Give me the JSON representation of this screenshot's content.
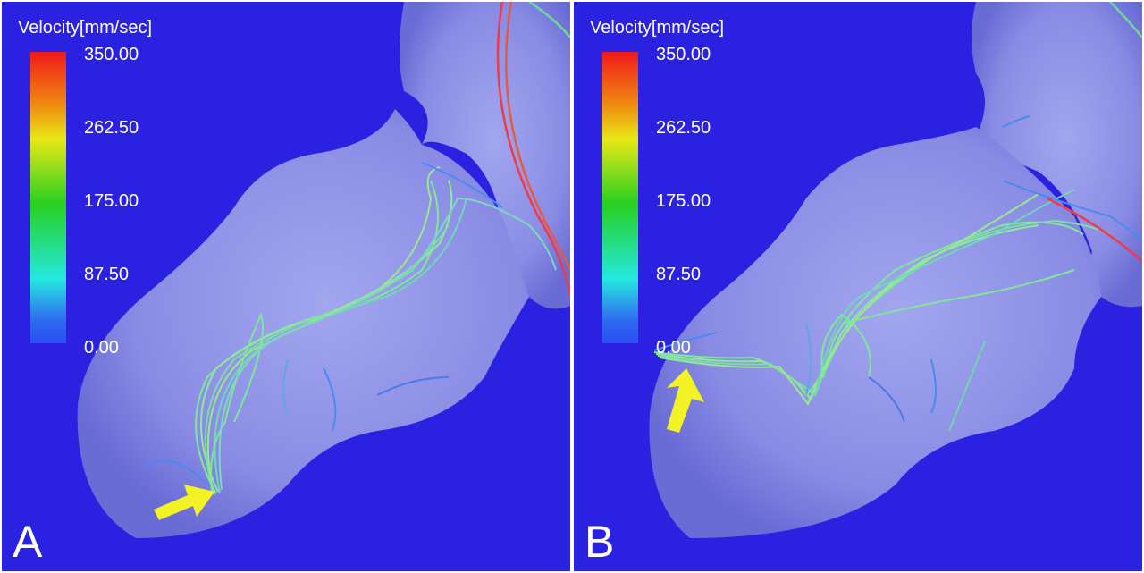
{
  "legend": {
    "title": "Velocity[mm/sec]",
    "ticks": [
      "350.00",
      "262.50",
      "175.00",
      "87.50",
      "0.00"
    ]
  },
  "panels": [
    {
      "label": "A"
    },
    {
      "label": "B"
    }
  ],
  "colors": {
    "background": "#2a22e0",
    "surface": "#8a8ce6",
    "arrow": "#f2f224",
    "streamline_primary": "#7ee89a",
    "streamline_slow": "#4a8af0",
    "streamline_fast": "#ee3a4a"
  }
}
